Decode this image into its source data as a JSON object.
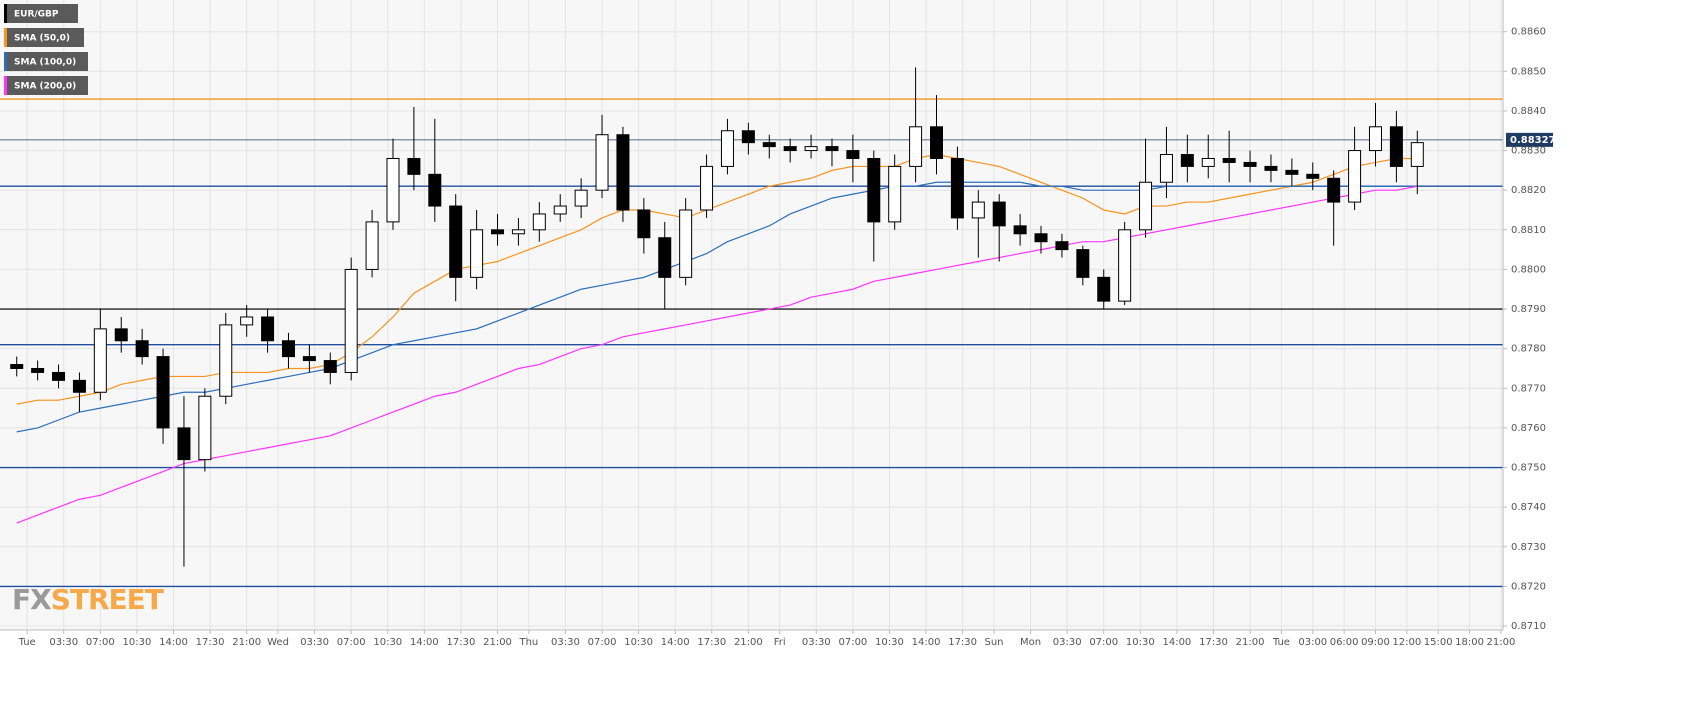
{
  "chart_data": {
    "type": "candlestick",
    "watermark": [
      "FX",
      "STREET"
    ],
    "xlim": [
      -2.6,
      141.2
    ],
    "ylim": [
      0.8709,
      0.8868
    ],
    "grid": true,
    "xticks": [
      {
        "value": 0,
        "label": "Tue"
      },
      {
        "value": 3.5,
        "label": "03:30"
      },
      {
        "value": 7,
        "label": "07:00"
      },
      {
        "value": 10.5,
        "label": "10:30"
      },
      {
        "value": 14,
        "label": "14:00"
      },
      {
        "value": 17.5,
        "label": "17:30"
      },
      {
        "value": 21,
        "label": "21:00"
      },
      {
        "value": 24,
        "label": "Wed"
      },
      {
        "value": 27.5,
        "label": "03:30"
      },
      {
        "value": 31,
        "label": "07:00"
      },
      {
        "value": 34.5,
        "label": "10:30"
      },
      {
        "value": 38,
        "label": "14:00"
      },
      {
        "value": 41.5,
        "label": "17:30"
      },
      {
        "value": 45,
        "label": "21:00"
      },
      {
        "value": 48,
        "label": "Thu"
      },
      {
        "value": 51.5,
        "label": "03:30"
      },
      {
        "value": 55,
        "label": "07:00"
      },
      {
        "value": 58.5,
        "label": "10:30"
      },
      {
        "value": 62,
        "label": "14:00"
      },
      {
        "value": 65.5,
        "label": "17:30"
      },
      {
        "value": 69,
        "label": "21:00"
      },
      {
        "value": 72,
        "label": "Fri"
      },
      {
        "value": 75.5,
        "label": "03:30"
      },
      {
        "value": 79,
        "label": "07:00"
      },
      {
        "value": 82.5,
        "label": "10:30"
      },
      {
        "value": 86,
        "label": "14:00"
      },
      {
        "value": 89.5,
        "label": "17:30"
      },
      {
        "value": 92.5,
        "label": "Sun"
      },
      {
        "value": 96,
        "label": "Mon"
      },
      {
        "value": 99.5,
        "label": "03:30"
      },
      {
        "value": 103,
        "label": "07:00"
      },
      {
        "value": 106.5,
        "label": "10:30"
      },
      {
        "value": 110,
        "label": "14:00"
      },
      {
        "value": 113.5,
        "label": "17:30"
      },
      {
        "value": 117,
        "label": "21:00"
      },
      {
        "value": 120,
        "label": "Tue"
      },
      {
        "value": 123,
        "label": "03:00"
      },
      {
        "value": 126,
        "label": "06:00"
      },
      {
        "value": 129,
        "label": "09:00"
      },
      {
        "value": 132,
        "label": "12:00"
      },
      {
        "value": 135,
        "label": "15:00"
      },
      {
        "value": 138,
        "label": "18:00"
      },
      {
        "value": 141,
        "label": "21:00"
      }
    ],
    "yticks": [
      {
        "value": 0.871,
        "label": "0.8710"
      },
      {
        "value": 0.872,
        "label": "0.8720"
      },
      {
        "value": 0.873,
        "label": "0.8730"
      },
      {
        "value": 0.874,
        "label": "0.8740"
      },
      {
        "value": 0.875,
        "label": "0.8750"
      },
      {
        "value": 0.876,
        "label": "0.8760"
      },
      {
        "value": 0.877,
        "label": "0.8770"
      },
      {
        "value": 0.878,
        "label": "0.8780"
      },
      {
        "value": 0.879,
        "label": "0.8790"
      },
      {
        "value": 0.88,
        "label": "0.8800"
      },
      {
        "value": 0.881,
        "label": "0.8810"
      },
      {
        "value": 0.882,
        "label": "0.8820"
      },
      {
        "value": 0.883,
        "label": "0.8830"
      },
      {
        "value": 0.884,
        "label": "0.8840"
      },
      {
        "value": 0.885,
        "label": "0.8850"
      },
      {
        "value": 0.886,
        "label": "0.8860"
      }
    ],
    "x": [
      -1,
      1,
      3,
      5,
      7,
      9,
      11,
      13,
      15,
      17,
      19,
      21,
      23,
      25,
      27,
      29,
      31,
      33,
      35,
      37,
      39,
      41,
      43,
      45,
      47,
      49,
      51,
      53,
      55,
      57,
      59,
      61,
      63,
      65,
      67,
      69,
      71,
      73,
      75,
      77,
      79,
      81,
      83,
      85,
      87,
      89,
      91,
      93,
      95,
      97,
      99,
      101,
      103,
      105,
      107,
      109,
      111,
      113,
      115,
      117,
      119,
      121,
      123,
      125,
      127,
      129,
      131,
      133
    ],
    "price": {
      "name": "EUR/GBP",
      "color": "#000000",
      "open": [
        0.8776,
        0.8775,
        0.8774,
        0.8772,
        0.8769,
        0.8785,
        0.8782,
        0.8778,
        0.876,
        0.8752,
        0.8768,
        0.8786,
        0.8788,
        0.8782,
        0.8778,
        0.8777,
        0.8774,
        0.88,
        0.8812,
        0.8828,
        0.8824,
        0.8816,
        0.8798,
        0.881,
        0.8809,
        0.881,
        0.8814,
        0.8816,
        0.882,
        0.8834,
        0.8815,
        0.8808,
        0.8798,
        0.8815,
        0.8826,
        0.8835,
        0.8832,
        0.8831,
        0.883,
        0.8831,
        0.883,
        0.8828,
        0.8812,
        0.8826,
        0.8836,
        0.8828,
        0.8813,
        0.8817,
        0.8811,
        0.8809,
        0.8807,
        0.8805,
        0.8798,
        0.8792,
        0.881,
        0.8822,
        0.8829,
        0.8826,
        0.8828,
        0.8827,
        0.8826,
        0.8825,
        0.8824,
        0.8823,
        0.8817,
        0.883,
        0.8836,
        0.8826
      ],
      "high": [
        0.8778,
        0.8777,
        0.8776,
        0.8774,
        0.879,
        0.8788,
        0.8785,
        0.878,
        0.8768,
        0.877,
        0.8789,
        0.8791,
        0.879,
        0.8784,
        0.8781,
        0.8779,
        0.8803,
        0.8815,
        0.8833,
        0.8841,
        0.8838,
        0.8819,
        0.8815,
        0.8814,
        0.8813,
        0.8817,
        0.8819,
        0.8823,
        0.8839,
        0.8836,
        0.8818,
        0.8812,
        0.8818,
        0.8829,
        0.8838,
        0.8837,
        0.8834,
        0.8833,
        0.8834,
        0.8833,
        0.8834,
        0.883,
        0.8829,
        0.8851,
        0.8844,
        0.8831,
        0.882,
        0.8819,
        0.8814,
        0.8811,
        0.8809,
        0.8806,
        0.88,
        0.8812,
        0.8833,
        0.8836,
        0.8834,
        0.8834,
        0.8835,
        0.883,
        0.8829,
        0.8828,
        0.8827,
        0.8825,
        0.8836,
        0.8842,
        0.884,
        0.8835
      ],
      "low": [
        0.8773,
        0.8772,
        0.877,
        0.8764,
        0.8767,
        0.8779,
        0.8776,
        0.8756,
        0.8725,
        0.8749,
        0.8766,
        0.8783,
        0.8779,
        0.8775,
        0.8774,
        0.8771,
        0.8772,
        0.8798,
        0.881,
        0.882,
        0.8812,
        0.8792,
        0.8795,
        0.8806,
        0.8806,
        0.8807,
        0.8812,
        0.8813,
        0.8818,
        0.8812,
        0.8804,
        0.879,
        0.8796,
        0.8813,
        0.8824,
        0.8829,
        0.8828,
        0.8827,
        0.8828,
        0.8826,
        0.8822,
        0.8802,
        0.881,
        0.8822,
        0.8824,
        0.881,
        0.8803,
        0.8802,
        0.8806,
        0.8804,
        0.8803,
        0.8796,
        0.879,
        0.8791,
        0.8808,
        0.8818,
        0.8822,
        0.8823,
        0.8822,
        0.8822,
        0.8822,
        0.8821,
        0.882,
        0.8806,
        0.8815,
        0.8826,
        0.8822,
        0.8819
      ],
      "close": [
        0.8775,
        0.8774,
        0.8772,
        0.8769,
        0.8785,
        0.8782,
        0.8778,
        0.876,
        0.8752,
        0.8768,
        0.8786,
        0.8788,
        0.8782,
        0.8778,
        0.8777,
        0.8774,
        0.88,
        0.8812,
        0.8828,
        0.8824,
        0.8816,
        0.8798,
        0.881,
        0.8809,
        0.881,
        0.8814,
        0.8816,
        0.882,
        0.8834,
        0.8815,
        0.8808,
        0.8798,
        0.8815,
        0.8826,
        0.8835,
        0.8832,
        0.8831,
        0.883,
        0.8831,
        0.883,
        0.8828,
        0.8812,
        0.8826,
        0.8836,
        0.8828,
        0.8813,
        0.8817,
        0.8811,
        0.8809,
        0.8807,
        0.8805,
        0.8798,
        0.8792,
        0.881,
        0.8822,
        0.8829,
        0.8826,
        0.8828,
        0.8827,
        0.8826,
        0.8825,
        0.8824,
        0.8823,
        0.8817,
        0.883,
        0.8836,
        0.8826,
        0.8832
      ]
    },
    "series": [
      {
        "name": "SMA (50,0)",
        "color": "#f7931e",
        "values": [
          0.8766,
          0.8767,
          0.8767,
          0.8768,
          0.8769,
          0.8771,
          0.8772,
          0.8773,
          0.8773,
          0.8773,
          0.8774,
          0.8774,
          0.8774,
          0.8775,
          0.8775,
          0.8776,
          0.8779,
          0.8783,
          0.8788,
          0.8794,
          0.8797,
          0.88,
          0.8801,
          0.8802,
          0.8804,
          0.8806,
          0.8808,
          0.881,
          0.8813,
          0.8815,
          0.8815,
          0.8814,
          0.8813,
          0.8815,
          0.8817,
          0.8819,
          0.8821,
          0.8822,
          0.8823,
          0.8825,
          0.8826,
          0.8826,
          0.8826,
          0.8828,
          0.8829,
          0.8828,
          0.8827,
          0.8826,
          0.8824,
          0.8822,
          0.882,
          0.8818,
          0.8815,
          0.8814,
          0.8816,
          0.8816,
          0.8817,
          0.8817,
          0.8818,
          0.8819,
          0.882,
          0.8821,
          0.8822,
          0.8824,
          0.8826,
          0.8827,
          0.8828,
          0.8828
        ]
      },
      {
        "name": "SMA (100,0)",
        "color": "#2a6ebb",
        "values": [
          0.8759,
          0.876,
          0.8762,
          0.8764,
          0.8765,
          0.8766,
          0.8767,
          0.8768,
          0.8769,
          0.8769,
          0.877,
          0.8771,
          0.8772,
          0.8773,
          0.8774,
          0.8775,
          0.8777,
          0.8779,
          0.8781,
          0.8782,
          0.8783,
          0.8784,
          0.8785,
          0.8787,
          0.8789,
          0.8791,
          0.8793,
          0.8795,
          0.8796,
          0.8797,
          0.8798,
          0.88,
          0.8802,
          0.8804,
          0.8807,
          0.8809,
          0.8811,
          0.8814,
          0.8816,
          0.8818,
          0.8819,
          0.882,
          0.8821,
          0.8821,
          0.8822,
          0.8822,
          0.8822,
          0.8822,
          0.8822,
          0.8821,
          0.8821,
          0.882,
          0.882,
          0.882,
          0.882,
          0.8821,
          0.8821,
          0.8821,
          0.8821,
          0.8821,
          0.8821,
          0.8821,
          0.8821,
          0.8821,
          0.8821,
          0.8821,
          0.8821,
          0.8821
        ]
      },
      {
        "name": "SMA (200,0)",
        "color": "#ff33ff",
        "values": [
          0.8736,
          0.8738,
          0.874,
          0.8742,
          0.8743,
          0.8745,
          0.8747,
          0.8749,
          0.8751,
          0.8752,
          0.8753,
          0.8754,
          0.8755,
          0.8756,
          0.8757,
          0.8758,
          0.876,
          0.8762,
          0.8764,
          0.8766,
          0.8768,
          0.8769,
          0.8771,
          0.8773,
          0.8775,
          0.8776,
          0.8778,
          0.878,
          0.8781,
          0.8783,
          0.8784,
          0.8785,
          0.8786,
          0.8787,
          0.8788,
          0.8789,
          0.879,
          0.8791,
          0.8793,
          0.8794,
          0.8795,
          0.8797,
          0.8798,
          0.8799,
          0.88,
          0.8801,
          0.8802,
          0.8803,
          0.8804,
          0.8805,
          0.8806,
          0.8807,
          0.8807,
          0.8808,
          0.8809,
          0.881,
          0.8811,
          0.8812,
          0.8813,
          0.8814,
          0.8815,
          0.8816,
          0.8817,
          0.8818,
          0.8819,
          0.882,
          0.882,
          0.8821
        ]
      }
    ],
    "levels": [
      {
        "value": 0.8843,
        "color": "#f7931e"
      },
      {
        "value": 0.8821,
        "color": "#1f4e9c"
      },
      {
        "value": 0.879,
        "color": "#222222"
      },
      {
        "value": 0.8781,
        "color": "#1f4e9c"
      },
      {
        "value": 0.875,
        "color": "#1f4e9c"
      },
      {
        "value": 0.872,
        "color": "#1f4e9c"
      }
    ],
    "last_price": 0.88327,
    "last_price_color": "#1f3b63"
  }
}
